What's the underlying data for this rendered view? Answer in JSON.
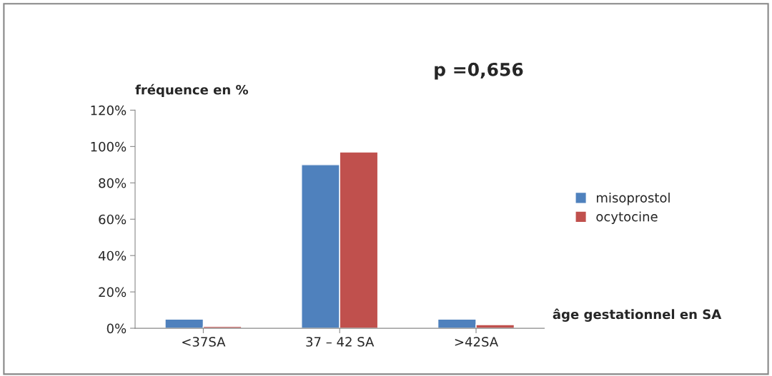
{
  "chart_data": {
    "type": "bar",
    "ylabel": "fréquence en %",
    "xlabel": "âge gestationnel en SA",
    "annotations": [
      "p =0,656"
    ],
    "categories": [
      "<37SA",
      "37 – 42 SA",
      ">42SA"
    ],
    "series": [
      {
        "name": "misoprostol",
        "color": "#4f81bd",
        "values": [
          5,
          90,
          5
        ]
      },
      {
        "name": "ocytocine",
        "color": "#c0504d",
        "values": [
          1,
          97,
          2
        ]
      }
    ],
    "ylim": [
      0,
      120
    ],
    "yticks": [
      {
        "value": 0,
        "label": "0%"
      },
      {
        "value": 20,
        "label": "20%"
      },
      {
        "value": 40,
        "label": "40%"
      },
      {
        "value": 60,
        "label": "60%"
      },
      {
        "value": 80,
        "label": "80%"
      },
      {
        "value": 100,
        "label": "100%"
      },
      {
        "value": 120,
        "label": "120%"
      }
    ],
    "grid": false,
    "legend": "right"
  }
}
